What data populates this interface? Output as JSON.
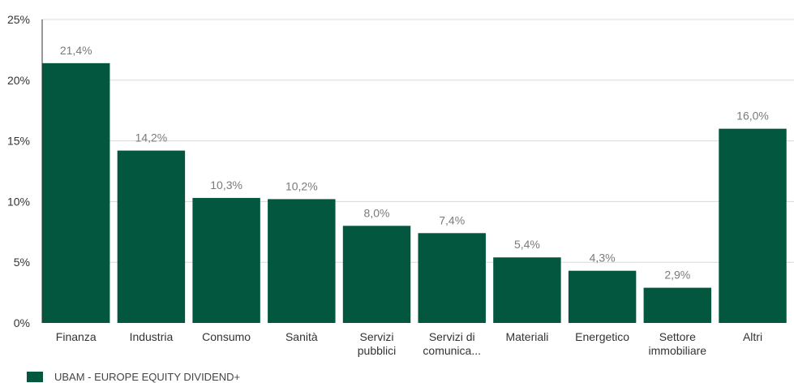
{
  "chart_data": {
    "type": "bar",
    "categories": [
      [
        "Finanza"
      ],
      [
        "Industria"
      ],
      [
        "Consumo"
      ],
      [
        "Sanità"
      ],
      [
        "Servizi",
        "pubblici"
      ],
      [
        "Servizi di",
        "comunica..."
      ],
      [
        "Materiali"
      ],
      [
        "Energetico"
      ],
      [
        "Settore",
        "immobiliare"
      ],
      [
        "Altri"
      ]
    ],
    "values": [
      21.4,
      14.2,
      10.3,
      10.2,
      8.0,
      7.4,
      5.4,
      4.3,
      2.9,
      16.0
    ],
    "value_labels": [
      "21,4%",
      "14,2%",
      "10,3%",
      "10,2%",
      "8,0%",
      "7,4%",
      "5,4%",
      "4,3%",
      "2,9%",
      "16,0%"
    ],
    "ylim": [
      0,
      25
    ],
    "yticks": [
      0,
      5,
      10,
      15,
      20,
      25
    ],
    "ytick_labels": [
      "0%",
      "5%",
      "10%",
      "15%",
      "20%",
      "25%"
    ],
    "grid": true,
    "legend_position": "bottom-left",
    "series": [
      {
        "name": "UBAM - EUROPE EQUITY DIVIDEND+",
        "color": "#02573e"
      }
    ],
    "colors": {
      "bar": "#02573e",
      "grid": "#d8d8d8",
      "axis": "#333333",
      "value_label": "#7a7a7a",
      "tick_label": "#333333"
    }
  }
}
